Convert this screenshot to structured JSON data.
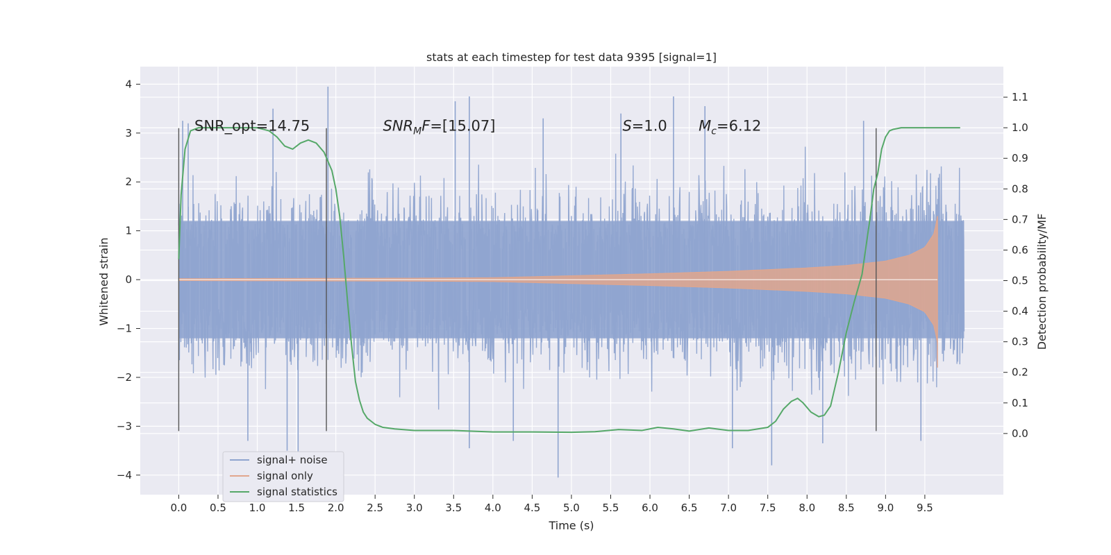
{
  "chart_data": {
    "type": "line",
    "title": "stats at each timestep for test data 9395 [signal=1]",
    "xlabel": "Time (s)",
    "ylabel": "Whitened strain",
    "y2label": "Detection probability/MF",
    "xlim": [
      -0.49,
      10.5
    ],
    "ylim": [
      -4.4,
      4.36
    ],
    "y2lim": [
      -0.2,
      1.2
    ],
    "x_ticks": [
      0.0,
      0.5,
      1.0,
      1.5,
      2.0,
      2.5,
      3.0,
      3.5,
      4.0,
      4.5,
      5.0,
      5.5,
      6.0,
      6.5,
      7.0,
      7.5,
      8.0,
      8.5,
      9.0,
      9.5
    ],
    "x_tick_labels": [
      "0.0",
      "0.5",
      "1.0",
      "1.5",
      "2.0",
      "2.5",
      "3.0",
      "3.5",
      "4.0",
      "4.5",
      "5.0",
      "5.5",
      "6.0",
      "6.5",
      "7.0",
      "7.5",
      "8.0",
      "8.5",
      "9.0",
      "9.5"
    ],
    "y_ticks": [
      -4,
      -3,
      -2,
      -1,
      0,
      1,
      2,
      3,
      4
    ],
    "y_tick_labels": [
      "−4",
      "−3",
      "−2",
      "−1",
      "0",
      "1",
      "2",
      "3",
      "4"
    ],
    "y2_ticks": [
      0.0,
      0.1,
      0.2,
      0.3,
      0.4,
      0.5,
      0.6,
      0.7,
      0.8,
      0.9,
      1.0,
      1.1
    ],
    "y2_tick_labels": [
      "0.0",
      "0.1",
      "0.2",
      "0.3",
      "0.4",
      "0.5",
      "0.6",
      "0.7",
      "0.8",
      "0.9",
      "1.0",
      "1.1"
    ],
    "grid": true,
    "legend_position": "lower-left",
    "annotations": [
      {
        "parts": [
          {
            "text": "SNR_opt=14.75"
          }
        ],
        "x": 0.2,
        "y": 3.05
      },
      {
        "parts": [
          {
            "text": "SNR",
            "italic": true
          },
          {
            "text": "M",
            "italic": true,
            "sub": true
          },
          {
            "text": "F",
            "italic": true
          },
          {
            "text": "=[15.07]"
          }
        ],
        "x": 2.6,
        "y": 3.05
      },
      {
        "parts": [
          {
            "text": "S",
            "italic": true
          },
          {
            "text": "=1.0"
          }
        ],
        "x": 5.65,
        "y": 3.05
      },
      {
        "parts": [
          {
            "text": "M",
            "italic": true
          },
          {
            "text": "c",
            "italic": true,
            "sub": true
          },
          {
            "text": "=6.12"
          }
        ],
        "x": 6.62,
        "y": 3.05
      }
    ],
    "vlines": {
      "x": [
        0.0,
        1.88,
        8.88
      ],
      "ymin": -3.1,
      "ymax": 3.1,
      "color": "#555555"
    },
    "series": [
      {
        "name": "signal+ noise",
        "color": "#8fa4cf",
        "t_range": [
          0.0,
          10.0
        ],
        "envelope": {
          "t": [
            0,
            2,
            4,
            6,
            8,
            9.68,
            10.0
          ],
          "upper": [
            1.7,
            1.7,
            1.7,
            1.72,
            1.8,
            2.05,
            1.9
          ],
          "lower": [
            -1.7,
            -1.7,
            -1.7,
            -1.72,
            -1.8,
            -2.05,
            -1.9
          ]
        },
        "spikes": [
          {
            "t": 0.05,
            "v": 3.25
          },
          {
            "t": 0.12,
            "v": 3.2
          },
          {
            "t": 1.2,
            "v": 3.5
          },
          {
            "t": 1.9,
            "v": 3.95
          },
          {
            "t": 3.52,
            "v": 3.65
          },
          {
            "t": 3.7,
            "v": 3.75
          },
          {
            "t": 4.64,
            "v": 3.3
          },
          {
            "t": 5.63,
            "v": 3.4
          },
          {
            "t": 6.3,
            "v": 3.75
          },
          {
            "t": 6.7,
            "v": 3.55
          },
          {
            "t": 8.72,
            "v": 3.25
          },
          {
            "t": 0.88,
            "v": -3.3
          },
          {
            "t": 1.38,
            "v": -3.5
          },
          {
            "t": 1.52,
            "v": -3.6
          },
          {
            "t": 3.7,
            "v": -3.45
          },
          {
            "t": 4.26,
            "v": -3.3
          },
          {
            "t": 4.83,
            "v": -4.05
          },
          {
            "t": 7.05,
            "v": -3.45
          },
          {
            "t": 7.55,
            "v": -3.8
          },
          {
            "t": 8.2,
            "v": -3.35
          },
          {
            "t": 9.45,
            "v": -3.3
          }
        ]
      },
      {
        "name": "signal only",
        "color": "#e1a68d",
        "t_range": [
          0.0,
          9.66
        ],
        "amplitude": {
          "t": [
            0,
            3,
            4,
            5,
            6,
            7,
            8,
            8.5,
            9.0,
            9.3,
            9.5,
            9.62,
            9.66
          ],
          "a": [
            0.02,
            0.03,
            0.04,
            0.08,
            0.12,
            0.17,
            0.24,
            0.29,
            0.38,
            0.5,
            0.66,
            0.95,
            1.3
          ]
        },
        "merger_time": 9.66
      },
      {
        "name": "signal statistics",
        "color": "#55a868",
        "x": [
          0.0,
          0.03,
          0.08,
          0.15,
          0.25,
          0.4,
          0.6,
          0.8,
          1.0,
          1.15,
          1.25,
          1.35,
          1.45,
          1.55,
          1.65,
          1.75,
          1.85,
          1.9,
          1.95,
          2.0,
          2.05,
          2.1,
          2.15,
          2.2,
          2.25,
          2.3,
          2.35,
          2.4,
          2.5,
          2.6,
          2.75,
          3.0,
          3.5,
          4.0,
          4.5,
          5.0,
          5.3,
          5.6,
          5.9,
          6.1,
          6.3,
          6.5,
          6.75,
          7.0,
          7.25,
          7.5,
          7.6,
          7.7,
          7.8,
          7.88,
          7.95,
          8.05,
          8.15,
          8.22,
          8.3,
          8.4,
          8.5,
          8.6,
          8.7,
          8.8,
          8.85,
          8.9,
          8.95,
          9.0,
          9.05,
          9.1,
          9.2,
          9.4,
          9.6,
          9.8,
          9.95
        ],
        "y": [
          0.57,
          0.78,
          0.93,
          0.99,
          1.0,
          1.0,
          1.0,
          1.0,
          1.0,
          0.99,
          0.97,
          0.94,
          0.93,
          0.95,
          0.96,
          0.95,
          0.92,
          0.89,
          0.86,
          0.8,
          0.71,
          0.58,
          0.43,
          0.29,
          0.17,
          0.11,
          0.07,
          0.05,
          0.03,
          0.02,
          0.015,
          0.01,
          0.01,
          0.005,
          0.005,
          0.004,
          0.006,
          0.013,
          0.01,
          0.02,
          0.015,
          0.008,
          0.018,
          0.01,
          0.01,
          0.02,
          0.04,
          0.08,
          0.105,
          0.115,
          0.1,
          0.07,
          0.055,
          0.06,
          0.09,
          0.2,
          0.33,
          0.43,
          0.52,
          0.7,
          0.8,
          0.85,
          0.93,
          0.97,
          0.99,
          0.995,
          1.0,
          1.0,
          1.0,
          1.0,
          1.0
        ]
      }
    ]
  }
}
